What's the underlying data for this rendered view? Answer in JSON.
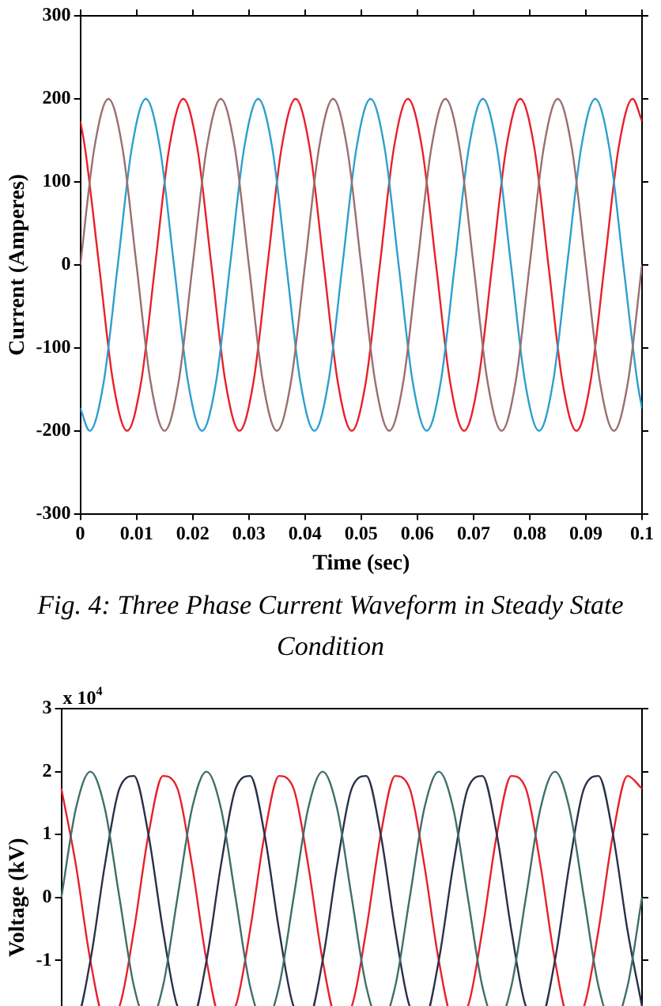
{
  "chart_data": [
    {
      "type": "line",
      "title": "Fig. 4: Three Phase Current Waveform in Steady State Condition",
      "xlabel": "Time (sec)",
      "ylabel": "Current (Amperes)",
      "xlim": [
        0,
        0.1
      ],
      "xticks": [
        0,
        0.01,
        0.02,
        0.03,
        0.04,
        0.05,
        0.06,
        0.07,
        0.08,
        0.09,
        0.1
      ],
      "ylim": [
        -300,
        300
      ],
      "yticks": [
        -300,
        -200,
        -100,
        0,
        100,
        200,
        300
      ],
      "series": [
        {
          "color": "#9a6f70",
          "x": [
            0,
            0.0025,
            0.005,
            0.0075,
            0.01,
            0.0125,
            0.015,
            0.0175,
            0.02,
            0.0225,
            0.025,
            0.0275,
            0.03,
            0.0325,
            0.035,
            0.0375,
            0.04,
            0.0425,
            0.045,
            0.0475,
            0.05,
            0.0525,
            0.055,
            0.0575,
            0.06,
            0.0625,
            0.065,
            0.0675,
            0.07,
            0.0725,
            0.075,
            0.0775,
            0.08,
            0.0825,
            0.085,
            0.0875,
            0.09,
            0.0925,
            0.095,
            0.0975,
            0.1
          ],
          "values": [
            0,
            141,
            200,
            141,
            0,
            -141,
            -200,
            -141,
            0,
            141,
            200,
            141,
            0,
            -141,
            -200,
            -141,
            0,
            141,
            200,
            141,
            0,
            -141,
            -200,
            -141,
            0,
            141,
            200,
            141,
            0,
            -141,
            -200,
            -141,
            0,
            141,
            200,
            141,
            0,
            -141,
            -200,
            -141,
            0
          ]
        },
        {
          "color": "#2e9fd0",
          "x": [
            0,
            0.00167,
            0.00417,
            0.00667,
            0.00917,
            0.01167,
            0.01417,
            0.01667,
            0.01917,
            0.02167,
            0.02417,
            0.02667,
            0.02917,
            0.03167,
            0.03417,
            0.03667,
            0.03917,
            0.04167,
            0.04417,
            0.04667,
            0.04917,
            0.05167,
            0.05417,
            0.05667,
            0.05917,
            0.06167,
            0.06417,
            0.06667,
            0.06917,
            0.07167,
            0.07417,
            0.07667,
            0.07917,
            0.08167,
            0.08417,
            0.08667,
            0.08917,
            0.09167,
            0.09417,
            0.09667,
            0.09917,
            0.1
          ],
          "values": [
            -173,
            -200,
            -141,
            0,
            141,
            200,
            141,
            0,
            -141,
            -200,
            -141,
            0,
            141,
            200,
            141,
            0,
            -141,
            -200,
            -141,
            0,
            141,
            200,
            141,
            0,
            -141,
            -200,
            -141,
            0,
            141,
            200,
            141,
            0,
            -141,
            -200,
            -141,
            0,
            141,
            200,
            141,
            0,
            -141,
            -173
          ]
        },
        {
          "color": "#e8202a",
          "x": [
            0,
            0.00083,
            0.00333,
            0.00583,
            0.00833,
            0.01083,
            0.01333,
            0.01583,
            0.01833,
            0.02083,
            0.02333,
            0.02583,
            0.02833,
            0.03083,
            0.03333,
            0.03583,
            0.03833,
            0.04083,
            0.04333,
            0.04583,
            0.04833,
            0.05083,
            0.05333,
            0.05583,
            0.05833,
            0.06083,
            0.06333,
            0.06583,
            0.06833,
            0.07083,
            0.07333,
            0.07583,
            0.07833,
            0.08083,
            0.08333,
            0.08583,
            0.08833,
            0.09083,
            0.09333,
            0.09583,
            0.09833,
            0.1
          ],
          "values": [
            173,
            141,
            0,
            -141,
            -200,
            -141,
            0,
            141,
            200,
            141,
            0,
            -141,
            -200,
            -141,
            0,
            141,
            200,
            141,
            0,
            -141,
            -200,
            -141,
            0,
            141,
            200,
            141,
            0,
            -141,
            -200,
            -141,
            0,
            141,
            200,
            141,
            0,
            -141,
            -200,
            -141,
            0,
            141,
            200,
            173
          ]
        }
      ]
    },
    {
      "type": "line",
      "ylabel": "Voltage (kV)",
      "annotations": [
        "x 10$^{4}$"
      ],
      "tick_labels": "y",
      "categories": [
        null,
        null,
        null,
        null,
        null,
        null,
        null,
        null,
        null,
        null,
        null,
        null,
        null,
        null,
        null,
        null,
        null,
        null,
        null,
        null,
        null,
        null,
        null,
        null,
        null,
        null,
        null,
        null,
        null,
        null,
        null,
        null,
        null,
        null,
        null,
        null,
        null,
        null,
        null,
        null,
        null
      ],
      "ylim": [
        -3,
        3
      ],
      "yticks": [
        -1,
        0,
        1,
        2,
        3
      ],
      "series": [
        {
          "color": "#3f6f6a",
          "values": [
            0,
            1.41,
            2,
            1.41,
            0,
            -1.41,
            -2,
            -1.41,
            0,
            1.41,
            2,
            1.41,
            0,
            -1.41,
            -2,
            -1.41,
            0,
            1.41,
            2,
            1.41,
            0,
            -1.41,
            -2,
            -1.41,
            0,
            1.41,
            2,
            1.41,
            0,
            -1.41,
            -2,
            -1.41,
            0,
            1.41,
            2,
            1.41,
            0,
            -1.41,
            -2,
            -1.41,
            0
          ]
        },
        {
          "color": "#28304a",
          "values": [
            -1.73,
            -1.93,
            -1,
            0.52,
            1.73,
            1.93,
            1,
            -0.52,
            -1.73,
            -1.93,
            -1,
            0.52,
            1.73,
            1.93,
            1,
            -0.52,
            -1.73,
            -1.93,
            -1,
            0.52,
            1.73,
            1.93,
            1,
            -0.52,
            -1.73,
            -1.93,
            -1,
            0.52,
            1.73,
            1.93,
            1,
            -0.52,
            -1.73,
            -1.93,
            -1,
            0.52,
            1.73,
            1.93,
            1,
            -0.52,
            -1.73
          ]
        },
        {
          "color": "#e8202a",
          "values": [
            1.73,
            0.52,
            -1,
            -1.93,
            -1.73,
            -0.52,
            1,
            1.93,
            1.73,
            0.52,
            -1,
            -1.93,
            -1.73,
            -0.52,
            1,
            1.93,
            1.73,
            0.52,
            -1,
            -1.93,
            -1.73,
            -0.52,
            1,
            1.93,
            1.73,
            0.52,
            -1,
            -1.93,
            -1.73,
            -0.52,
            1,
            1.93,
            1.73,
            0.52,
            -1,
            -1.93,
            -1.73,
            -0.52,
            1,
            1.93,
            1.73
          ]
        }
      ]
    }
  ]
}
